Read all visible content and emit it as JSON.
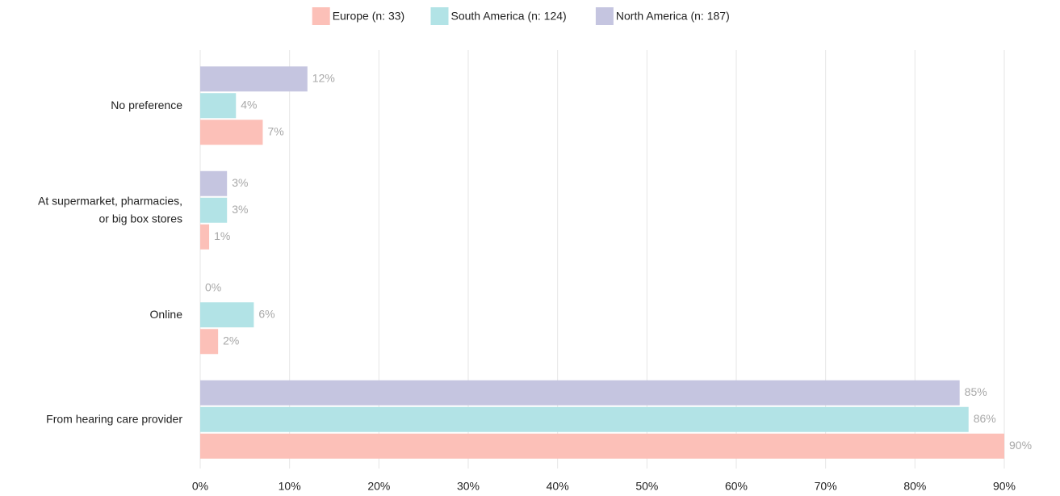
{
  "chart_data": {
    "type": "hbar",
    "categories": [
      "No preference",
      "At supermarket, pharmacies,\nor big box stores",
      "Online",
      "From hearing care provider"
    ],
    "series": [
      {
        "name": "Europe (n: 33)",
        "color": "#fcc0b8",
        "values": [
          7,
          1,
          2,
          90
        ],
        "value_labels": [
          "7%",
          "1%",
          "2%",
          "90%"
        ]
      },
      {
        "name": "South America (n: 124)",
        "color": "#b2e3e6",
        "values": [
          4,
          3,
          6,
          86
        ],
        "value_labels": [
          "4%",
          "3%",
          "6%",
          "86%"
        ]
      },
      {
        "name": "North America (n: 187)",
        "color": "#c5c5e0",
        "values": [
          12,
          3,
          0,
          85
        ],
        "value_labels": [
          "12%",
          "3%",
          "0%",
          "85%"
        ]
      }
    ],
    "xlim": [
      0,
      90
    ],
    "xticks": [
      {
        "value": 0,
        "label": "0%"
      },
      {
        "value": 10,
        "label": "10%"
      },
      {
        "value": 20,
        "label": "20%"
      },
      {
        "value": 30,
        "label": "30%"
      },
      {
        "value": 40,
        "label": "40%"
      },
      {
        "value": 50,
        "label": "50%"
      },
      {
        "value": 60,
        "label": "60%"
      },
      {
        "value": 70,
        "label": "70%"
      },
      {
        "value": 80,
        "label": "80%"
      },
      {
        "value": 90,
        "label": "90%"
      }
    ],
    "grid": true,
    "legend": "top"
  }
}
